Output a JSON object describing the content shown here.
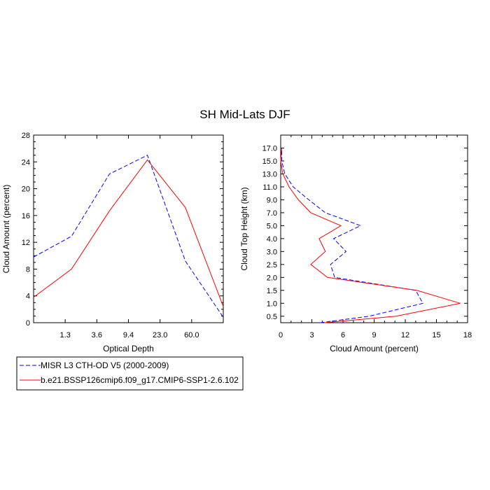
{
  "figure_title": "SH Mid-Lats DJF",
  "legend": {
    "entries": [
      {
        "label": "MISR L3 CTH-OD V5 (2000-2009)",
        "color": "#0000ff",
        "dash": "dashed"
      },
      {
        "label": "b.e21.BSSP126cmip6.f09_g17.CMIP6-SSP1-2.6.102",
        "color": "#ff0000",
        "dash": "solid"
      }
    ]
  },
  "chart_data": [
    {
      "type": "line",
      "xlabel": "Optical Depth",
      "ylabel": "Cloud Amount (percent)",
      "x_categories": [
        "",
        "1.3",
        "3.6",
        "9.4",
        "23.0",
        "60.0",
        ""
      ],
      "x_tick_labels": [
        "1.3",
        "3.6",
        "9.4",
        "23.0",
        "60.0"
      ],
      "ylim": [
        0,
        28
      ],
      "y_ticks": [
        0,
        4,
        8,
        12,
        16,
        20,
        24,
        28
      ],
      "series": [
        {
          "name": "MISR L3 CTH-OD V5 (2000-2009)",
          "color": "#0000ff",
          "dash": "dashed",
          "values": [
            9.8,
            12.9,
            22.2,
            25.0,
            9.2,
            0.8
          ]
        },
        {
          "name": "b.e21.BSSP126cmip6.f09_g17.CMIP6-SSP1-2.6.102",
          "color": "#ff0000",
          "dash": "solid",
          "values": [
            3.8,
            8.0,
            16.7,
            24.3,
            17.2,
            2.4
          ]
        }
      ],
      "grid": false
    },
    {
      "type": "line",
      "xlabel": "Cloud Amount (percent)",
      "ylabel": "Cloud Top Height (km)",
      "xlim": [
        0,
        18
      ],
      "x_ticks": [
        0,
        3,
        6,
        9,
        12,
        15,
        18
      ],
      "y_categories": [
        "0.5",
        "1.0",
        "1.5",
        "2.0",
        "2.5",
        "3.0",
        "4.0",
        "5.0",
        "7.0",
        "9.0",
        "11.0",
        "13.0",
        "15.0",
        "17.0"
      ],
      "series": [
        {
          "name": "MISR L3 CTH-OD V5 (2000-2009)",
          "color": "#0000ff",
          "dash": "dashed",
          "values": [
            3.8,
            8.5,
            13.7,
            13.0,
            5.2,
            4.8,
            6.3,
            5.1,
            7.7,
            4.3,
            2.7,
            1.2,
            0.4,
            0.1,
            0.1
          ]
        },
        {
          "name": "b.e21.BSSP126cmip6.f09_g17.CMIP6-SSP1-2.6.102",
          "color": "#ff0000",
          "dash": "solid",
          "values": [
            4.2,
            11.1,
            17.3,
            13.1,
            4.5,
            2.9,
            4.3,
            3.7,
            5.8,
            2.9,
            1.7,
            0.8,
            0.2,
            0.0,
            0.1
          ]
        }
      ],
      "grid": false
    }
  ]
}
